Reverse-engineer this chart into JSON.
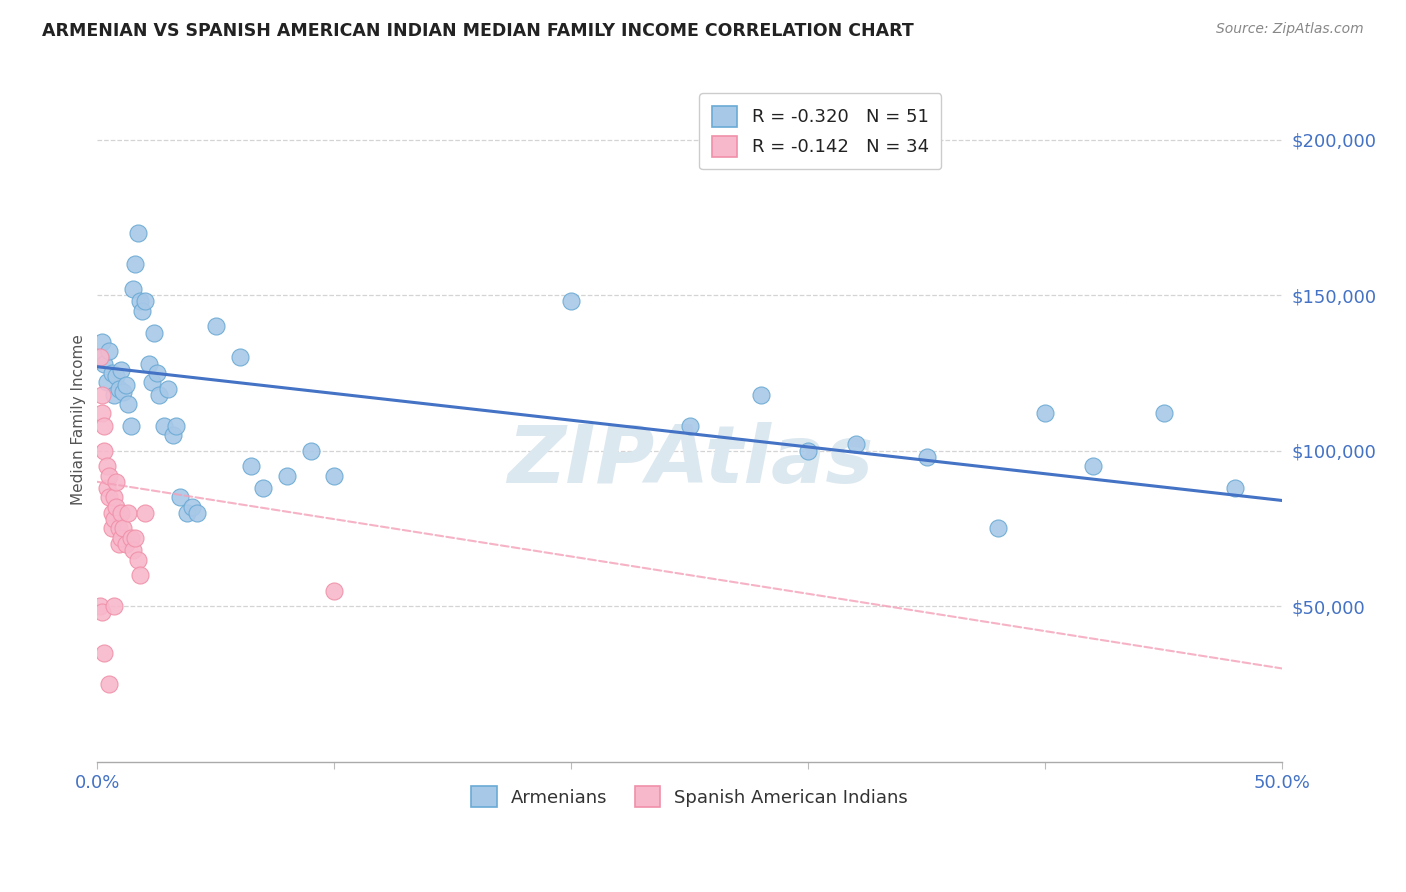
{
  "title": "ARMENIAN VS SPANISH AMERICAN INDIAN MEDIAN FAMILY INCOME CORRELATION CHART",
  "source": "Source: ZipAtlas.com",
  "ylabel": "Median Family Income",
  "watermark": "ZIPAtlas",
  "legend_armenians_R": "-0.320",
  "legend_armenians_N": "51",
  "legend_spanish_R": "-0.142",
  "legend_spanish_N": "34",
  "ytick_labels": [
    "$50,000",
    "$100,000",
    "$150,000",
    "$200,000"
  ],
  "ytick_values": [
    50000,
    100000,
    150000,
    200000
  ],
  "armenian_face_color": "#a8c8e8",
  "armenian_edge_color": "#6aaad4",
  "spanish_face_color": "#f8b8cc",
  "spanish_edge_color": "#f090a8",
  "armenian_line_color": "#4472c4",
  "spanish_line_color": "#f4a0b8",
  "armenian_points": [
    [
      0.001,
      130000
    ],
    [
      0.002,
      135000
    ],
    [
      0.003,
      128000
    ],
    [
      0.004,
      122000
    ],
    [
      0.005,
      132000
    ],
    [
      0.006,
      125000
    ],
    [
      0.007,
      118000
    ],
    [
      0.008,
      124000
    ],
    [
      0.009,
      120000
    ],
    [
      0.01,
      126000
    ],
    [
      0.011,
      119000
    ],
    [
      0.012,
      121000
    ],
    [
      0.013,
      115000
    ],
    [
      0.014,
      108000
    ],
    [
      0.015,
      152000
    ],
    [
      0.016,
      160000
    ],
    [
      0.017,
      170000
    ],
    [
      0.018,
      148000
    ],
    [
      0.019,
      145000
    ],
    [
      0.02,
      148000
    ],
    [
      0.022,
      128000
    ],
    [
      0.023,
      122000
    ],
    [
      0.024,
      138000
    ],
    [
      0.025,
      125000
    ],
    [
      0.026,
      118000
    ],
    [
      0.028,
      108000
    ],
    [
      0.03,
      120000
    ],
    [
      0.032,
      105000
    ],
    [
      0.033,
      108000
    ],
    [
      0.035,
      85000
    ],
    [
      0.038,
      80000
    ],
    [
      0.04,
      82000
    ],
    [
      0.042,
      80000
    ],
    [
      0.05,
      140000
    ],
    [
      0.06,
      130000
    ],
    [
      0.065,
      95000
    ],
    [
      0.07,
      88000
    ],
    [
      0.08,
      92000
    ],
    [
      0.09,
      100000
    ],
    [
      0.1,
      92000
    ],
    [
      0.2,
      148000
    ],
    [
      0.25,
      108000
    ],
    [
      0.28,
      118000
    ],
    [
      0.3,
      100000
    ],
    [
      0.32,
      102000
    ],
    [
      0.35,
      98000
    ],
    [
      0.38,
      75000
    ],
    [
      0.4,
      112000
    ],
    [
      0.42,
      95000
    ],
    [
      0.45,
      112000
    ],
    [
      0.48,
      88000
    ]
  ],
  "spanish_points": [
    [
      0.001,
      130000
    ],
    [
      0.002,
      118000
    ],
    [
      0.002,
      112000
    ],
    [
      0.003,
      108000
    ],
    [
      0.003,
      100000
    ],
    [
      0.004,
      95000
    ],
    [
      0.004,
      88000
    ],
    [
      0.005,
      92000
    ],
    [
      0.005,
      85000
    ],
    [
      0.006,
      80000
    ],
    [
      0.006,
      75000
    ],
    [
      0.007,
      85000
    ],
    [
      0.007,
      78000
    ],
    [
      0.008,
      90000
    ],
    [
      0.008,
      82000
    ],
    [
      0.009,
      75000
    ],
    [
      0.009,
      70000
    ],
    [
      0.01,
      80000
    ],
    [
      0.01,
      72000
    ],
    [
      0.011,
      75000
    ],
    [
      0.012,
      70000
    ],
    [
      0.013,
      80000
    ],
    [
      0.014,
      72000
    ],
    [
      0.015,
      68000
    ],
    [
      0.016,
      72000
    ],
    [
      0.017,
      65000
    ],
    [
      0.018,
      60000
    ],
    [
      0.02,
      80000
    ],
    [
      0.001,
      50000
    ],
    [
      0.002,
      48000
    ],
    [
      0.003,
      35000
    ],
    [
      0.005,
      25000
    ],
    [
      0.007,
      50000
    ],
    [
      0.1,
      55000
    ]
  ],
  "xlim": [
    0,
    0.5
  ],
  "ylim": [
    0,
    220000
  ],
  "armenian_trend_x": [
    0.0,
    0.5
  ],
  "armenian_trend_y": [
    127000,
    84000
  ],
  "spanish_trend_x": [
    0.0,
    0.5
  ],
  "spanish_trend_y": [
    90000,
    30000
  ],
  "background_color": "#ffffff",
  "grid_color": "#d0d0d0",
  "title_color": "#222222",
  "source_color": "#888888",
  "axis_label_color": "#555555",
  "tick_color": "#4472c4",
  "watermark_color": "#dce8f0"
}
